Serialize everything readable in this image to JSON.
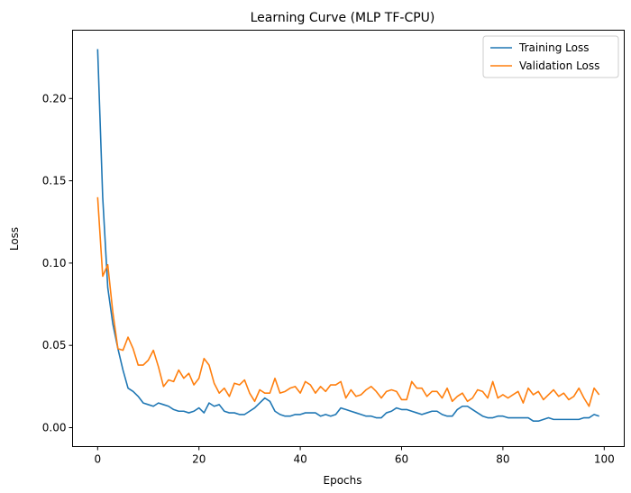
{
  "chart_data": {
    "type": "line",
    "title": "Learning Curve (MLP TF-CPU)",
    "xlabel": "Epochs",
    "ylabel": "Loss",
    "xlim": [
      -4.95,
      103.95
    ],
    "ylim": [
      -0.0115,
      0.2415
    ],
    "xticks": [
      0,
      20,
      40,
      60,
      80,
      100
    ],
    "xtick_labels": [
      "0",
      "20",
      "40",
      "60",
      "80",
      "100"
    ],
    "yticks": [
      0.0,
      0.05,
      0.1,
      0.15,
      0.2
    ],
    "ytick_labels": [
      "0.00",
      "0.05",
      "0.10",
      "0.15",
      "0.20"
    ],
    "grid": false,
    "legend_position": "top-right",
    "x": [
      0,
      1,
      2,
      3,
      4,
      5,
      6,
      7,
      8,
      9,
      10,
      11,
      12,
      13,
      14,
      15,
      16,
      17,
      18,
      19,
      20,
      21,
      22,
      23,
      24,
      25,
      26,
      27,
      28,
      29,
      30,
      31,
      32,
      33,
      34,
      35,
      36,
      37,
      38,
      39,
      40,
      41,
      42,
      43,
      44,
      45,
      46,
      47,
      48,
      49,
      50,
      51,
      52,
      53,
      54,
      55,
      56,
      57,
      58,
      59,
      60,
      61,
      62,
      63,
      64,
      65,
      66,
      67,
      68,
      69,
      70,
      71,
      72,
      73,
      74,
      75,
      76,
      77,
      78,
      79,
      80,
      81,
      82,
      83,
      84,
      85,
      86,
      87,
      88,
      89,
      90,
      91,
      92,
      93,
      94,
      95,
      96,
      97,
      98,
      99
    ],
    "series": [
      {
        "name": "Training Loss",
        "color": "#1f77b4",
        "values": [
          0.23,
          0.14,
          0.085,
          0.063,
          0.048,
          0.035,
          0.024,
          0.022,
          0.019,
          0.015,
          0.014,
          0.013,
          0.015,
          0.014,
          0.013,
          0.011,
          0.01,
          0.01,
          0.009,
          0.01,
          0.012,
          0.009,
          0.015,
          0.013,
          0.014,
          0.01,
          0.009,
          0.009,
          0.008,
          0.008,
          0.01,
          0.012,
          0.015,
          0.018,
          0.016,
          0.01,
          0.008,
          0.007,
          0.007,
          0.008,
          0.008,
          0.009,
          0.009,
          0.009,
          0.007,
          0.008,
          0.007,
          0.008,
          0.012,
          0.011,
          0.01,
          0.009,
          0.008,
          0.007,
          0.007,
          0.006,
          0.006,
          0.009,
          0.01,
          0.012,
          0.011,
          0.011,
          0.01,
          0.009,
          0.008,
          0.009,
          0.01,
          0.01,
          0.008,
          0.007,
          0.007,
          0.011,
          0.013,
          0.013,
          0.011,
          0.009,
          0.007,
          0.006,
          0.006,
          0.007,
          0.007,
          0.006,
          0.006,
          0.006,
          0.006,
          0.006,
          0.004,
          0.004,
          0.005,
          0.006,
          0.005,
          0.005,
          0.005,
          0.005,
          0.005,
          0.005,
          0.006,
          0.006,
          0.008,
          0.007
        ]
      },
      {
        "name": "Validation Loss",
        "color": "#ff7f0e",
        "values": [
          0.14,
          0.092,
          0.099,
          0.07,
          0.048,
          0.047,
          0.055,
          0.048,
          0.038,
          0.038,
          0.041,
          0.047,
          0.037,
          0.025,
          0.029,
          0.028,
          0.035,
          0.03,
          0.033,
          0.026,
          0.03,
          0.042,
          0.038,
          0.027,
          0.021,
          0.024,
          0.019,
          0.027,
          0.026,
          0.029,
          0.021,
          0.016,
          0.023,
          0.021,
          0.021,
          0.03,
          0.021,
          0.022,
          0.024,
          0.025,
          0.021,
          0.028,
          0.026,
          0.021,
          0.025,
          0.022,
          0.026,
          0.026,
          0.028,
          0.018,
          0.023,
          0.019,
          0.02,
          0.023,
          0.025,
          0.022,
          0.018,
          0.022,
          0.023,
          0.022,
          0.017,
          0.017,
          0.028,
          0.024,
          0.024,
          0.019,
          0.022,
          0.022,
          0.018,
          0.024,
          0.016,
          0.019,
          0.021,
          0.016,
          0.018,
          0.023,
          0.022,
          0.018,
          0.028,
          0.018,
          0.02,
          0.018,
          0.02,
          0.022,
          0.015,
          0.024,
          0.02,
          0.022,
          0.017,
          0.02,
          0.023,
          0.019,
          0.021,
          0.017,
          0.019,
          0.024,
          0.018,
          0.013,
          0.024,
          0.02
        ]
      }
    ]
  }
}
